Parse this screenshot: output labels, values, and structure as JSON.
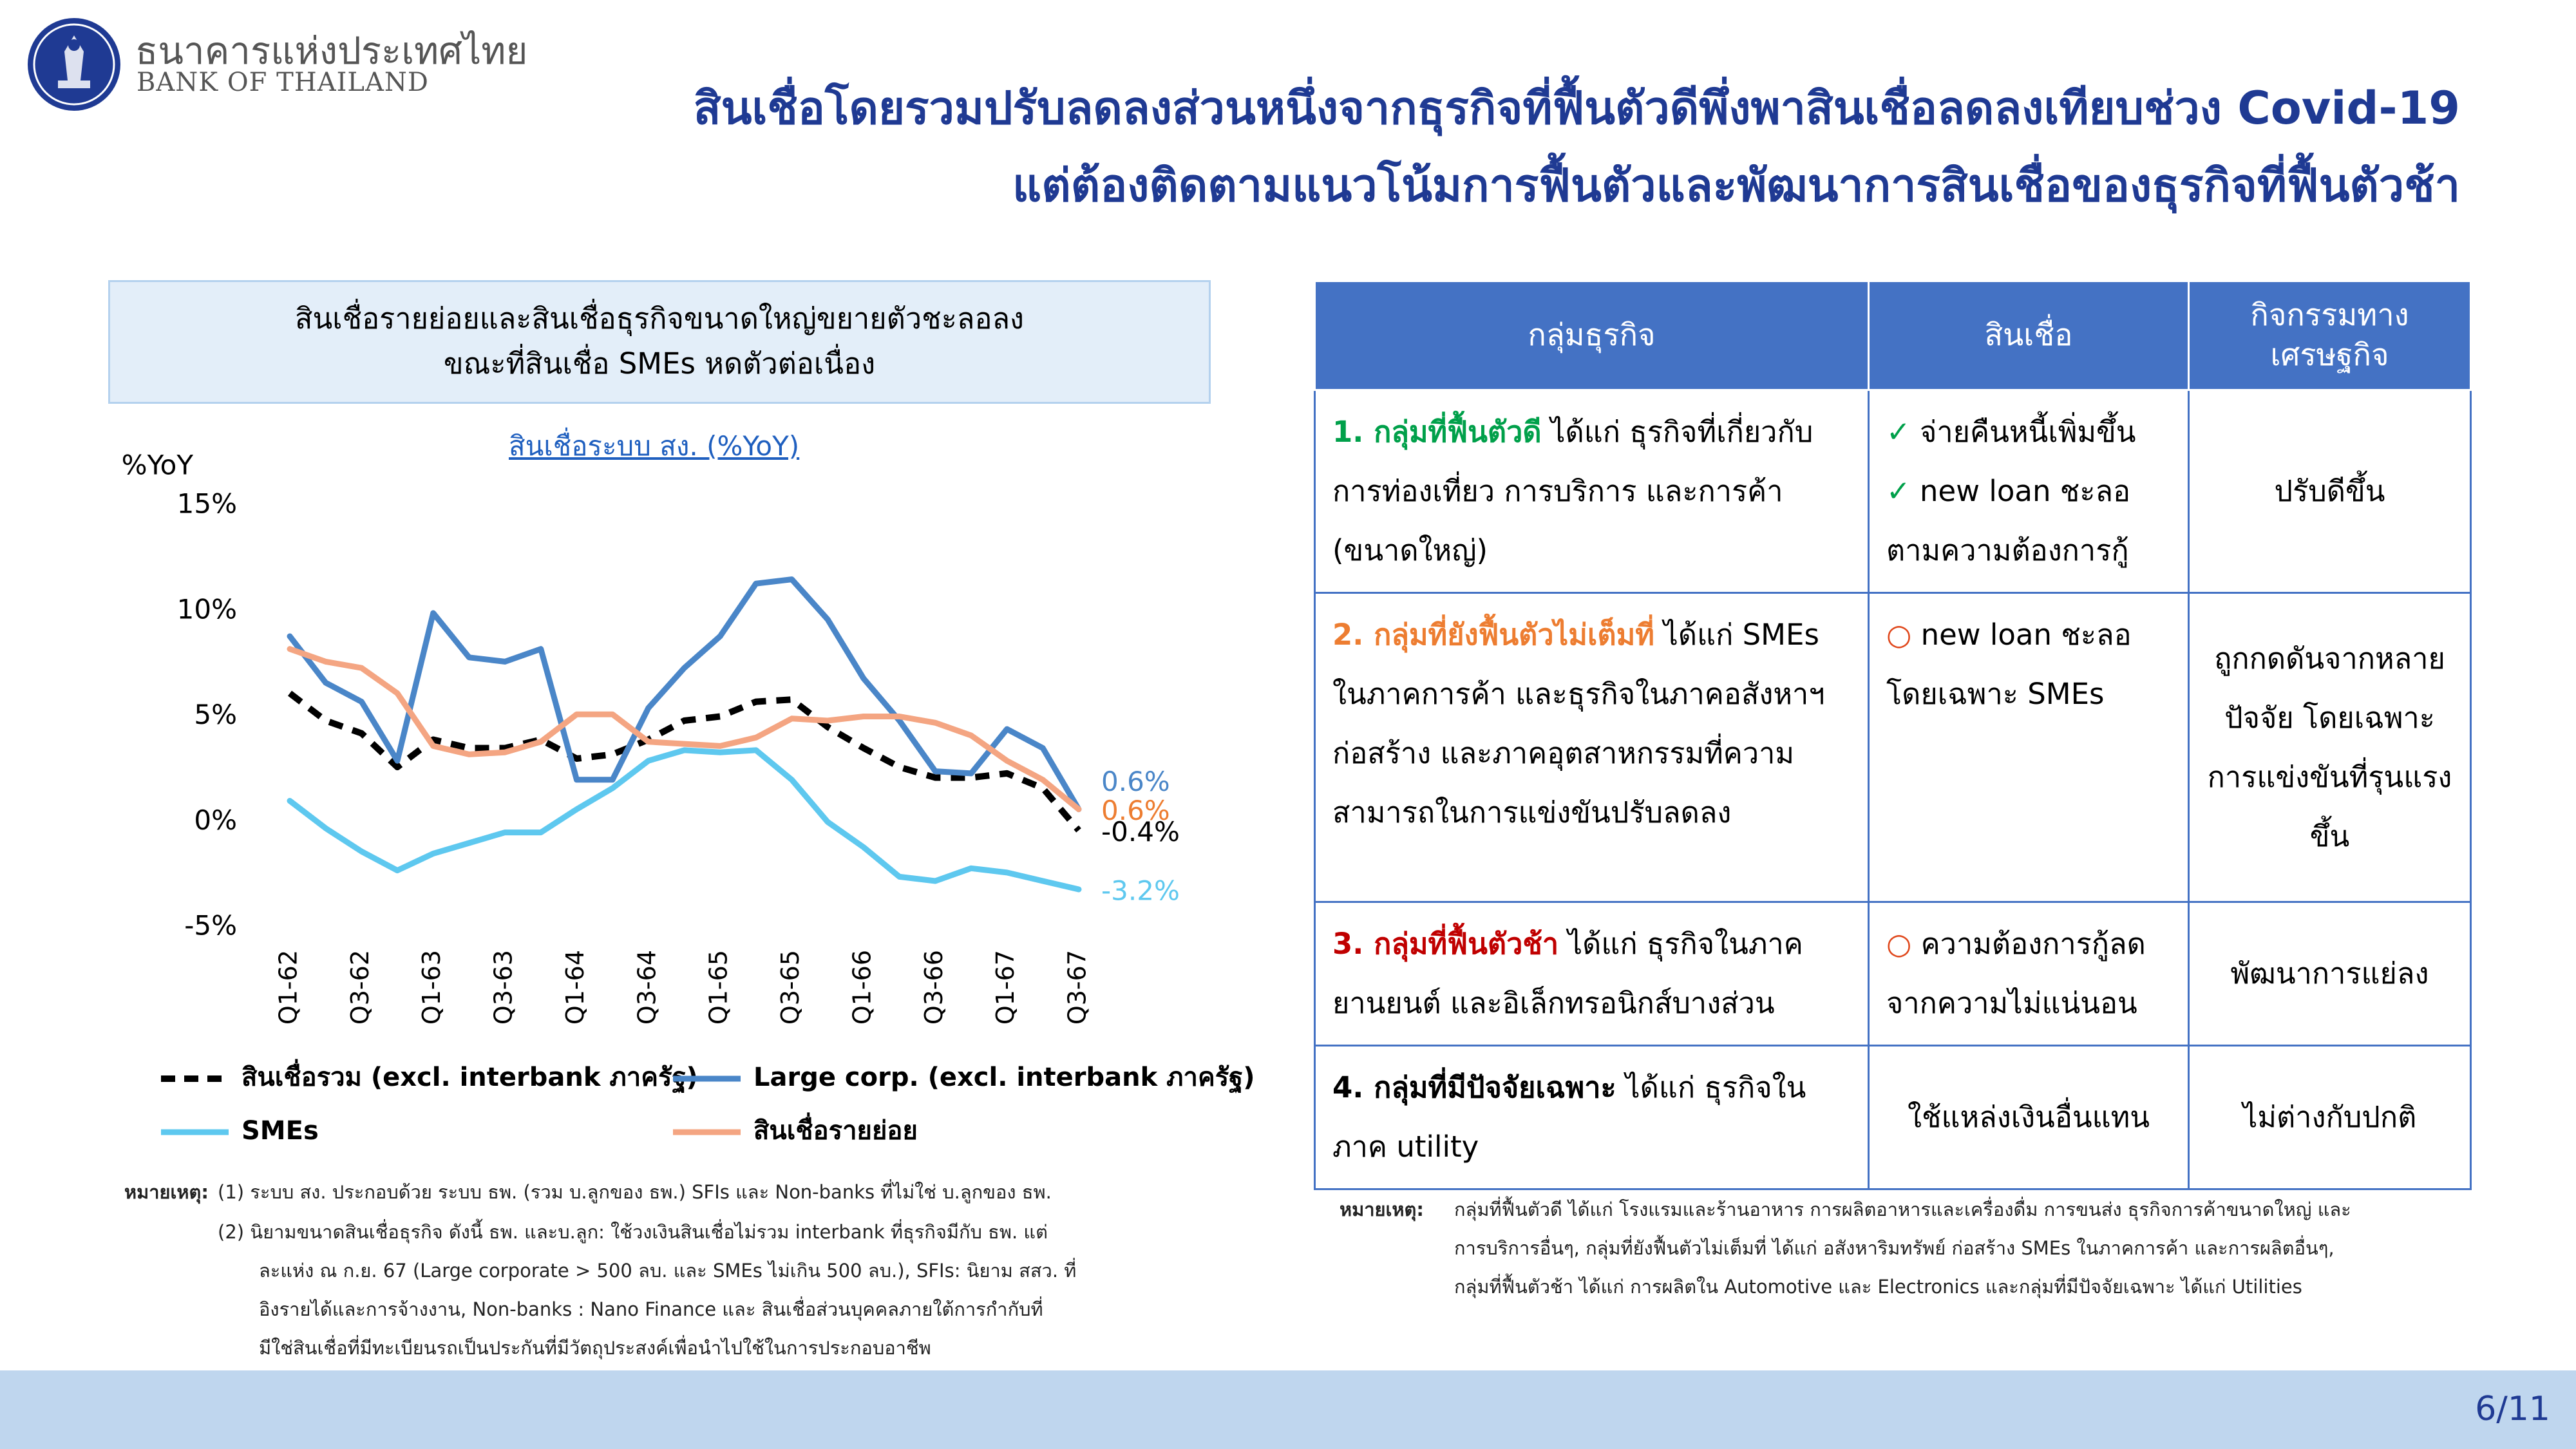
{
  "header": {
    "bank_name_th": "ธนาคารแห่งประเทศไทย",
    "bank_name_en": "BANK OF THAILAND",
    "title_line1": "สินเชื่อโดยรวมปรับลดลงส่วนหนึ่งจากธุรกิจที่ฟื้นตัวดีพึ่งพาสินเชื่อลดลงเทียบช่วง Covid-19",
    "title_line2": "แต่ต้องติดตามแนวโน้มการฟื้นตัวและพัฒนาการสินเชื่อของธุรกิจที่ฟื้นตัวช้า"
  },
  "chart_heading": {
    "line1": "สินเชื่อรายย่อยและสินเชื่อธุรกิจขนาดใหญ่ขยายตัวชะลอลง",
    "line2": "ขณะที่สินเชื่อ SMEs หดตัวต่อเนื่อง"
  },
  "chart_data": {
    "type": "line",
    "title": "สินเชื่อระบบ สง. (%YoY)",
    "ylabel": "%YoY",
    "ylim": [
      -5,
      15
    ],
    "yticks": [
      15,
      10,
      5,
      0,
      -5
    ],
    "ytick_labels": [
      "15%",
      "10%",
      "5%",
      "0%",
      "-5%"
    ],
    "x": [
      "Q1-62",
      "Q2-62",
      "Q3-62",
      "Q4-62",
      "Q1-63",
      "Q2-63",
      "Q3-63",
      "Q4-63",
      "Q1-64",
      "Q2-64",
      "Q3-64",
      "Q4-64",
      "Q1-65",
      "Q2-65",
      "Q3-65",
      "Q4-65",
      "Q1-66",
      "Q2-66",
      "Q3-66",
      "Q4-66",
      "Q1-67",
      "Q2-67",
      "Q3-67"
    ],
    "xtick_labels": [
      "Q1-62",
      "",
      "Q3-62",
      "",
      "Q1-63",
      "",
      "Q3-63",
      "",
      "Q1-64",
      "",
      "Q3-64",
      "",
      "Q1-65",
      "",
      "Q3-65",
      "",
      "Q1-66",
      "",
      "Q3-66",
      "",
      "Q1-67",
      "",
      "Q3-67"
    ],
    "legend_position": "bottom",
    "grid": false,
    "series": [
      {
        "name": "สินเชื่อรวม (excl. interbank ภาครัฐ)",
        "color": "#000000",
        "dashed": true,
        "values": [
          6.1,
          4.8,
          4.2,
          2.6,
          3.9,
          3.5,
          3.5,
          3.9,
          3.0,
          3.2,
          3.9,
          4.8,
          5.0,
          5.7,
          5.8,
          4.5,
          3.5,
          2.6,
          2.1,
          2.1,
          2.3,
          1.6,
          -0.4
        ],
        "end_label": "-0.4%",
        "end_label_color": "#000000"
      },
      {
        "name": "Large corp. (excl. interbank ภาครัฐ)",
        "color": "#4a86c8",
        "dashed": false,
        "values": [
          8.8,
          6.6,
          5.7,
          2.9,
          9.9,
          7.8,
          7.6,
          8.2,
          2.0,
          2.0,
          5.4,
          7.3,
          8.8,
          11.3,
          11.5,
          9.6,
          6.8,
          4.8,
          2.4,
          2.3,
          4.4,
          3.5,
          0.6
        ],
        "end_label": "0.6%",
        "end_label_color": "#4a86c8"
      },
      {
        "name": "SMEs",
        "color": "#5ec8ef",
        "dashed": false,
        "values": [
          1.0,
          -0.3,
          -1.4,
          -2.3,
          -1.5,
          -1.0,
          -0.5,
          -0.5,
          0.6,
          1.6,
          2.9,
          3.4,
          3.3,
          3.4,
          2.0,
          0.0,
          -1.2,
          -2.6,
          -2.8,
          -2.2,
          -2.4,
          -2.8,
          -3.2
        ],
        "end_label": "-3.2%",
        "end_label_color": "#5ec8ef"
      },
      {
        "name": "สินเชื่อรายย่อย",
        "color": "#f4a582",
        "dashed": false,
        "values": [
          8.2,
          7.6,
          7.3,
          6.1,
          3.6,
          3.2,
          3.3,
          3.8,
          5.1,
          5.1,
          3.8,
          3.7,
          3.6,
          4.0,
          4.9,
          4.8,
          5.0,
          5.0,
          4.7,
          4.1,
          2.9,
          2.0,
          0.6
        ],
        "end_label": "0.6%",
        "end_label_color": "#ed7d31"
      }
    ]
  },
  "chart_notes": {
    "label": "หมายเหตุ:",
    "item1": "(1)  ระบบ สง. ประกอบด้วย ระบบ ธพ. (รวม บ.ลูกของ ธพ.) SFIs และ Non-banks ที่ไม่ใช่ บ.ลูกของ ธพ.",
    "item2_line1": "(2)  นิยามขนาดสินเชื่อธุรกิจ ดังนี้ ธพ. และบ.ลูก: ใช้วงเงินสินเชื่อไม่รวม interbank ที่ธุรกิจมีกับ ธพ. แต่",
    "item2_line2": "ละแห่ง ณ ก.ย. 67 (Large corporate > 500 ลบ. และ SMEs ไม่เกิน 500 ลบ.), SFIs: นิยาม สสว. ที่",
    "item2_line3": "อิงรายได้และการจ้างงาน, Non-banks : Nano Finance และ สินเชื่อส่วนบุคคลภายใต้การกำกับที่",
    "item2_line4": "มีใช่สินเชื่อที่มีทะเบียนรถเป็นประกันที่มีวัตถุประสงค์เพื่อนำไปใช้ในการประกอบอาชีพ"
  },
  "table": {
    "headers": {
      "group": "กลุ่มธุรกิจ",
      "credit": "สินเชื่อ",
      "activity_line1": "กิจกรรมทาง",
      "activity_line2": "เศรษฐกิจ"
    },
    "rows": [
      {
        "group_title": "1. กลุ่มที่ฟื้นตัวดี",
        "group_desc": " ได้แก่ ธุรกิจที่เกี่ยวกับการท่องเที่ยว การบริการ และการค้า (ขนาดใหญ่)",
        "credit_mark1": "✓",
        "credit_line1": " จ่ายคืนหนี้เพิ่มขึ้น",
        "credit_mark2": "✓",
        "credit_line2": " new loan ชะลอตามความต้องการกู้",
        "activity": "ปรับดีขึ้น"
      },
      {
        "group_title": "2. กลุ่มที่ยังฟื้นตัวไม่เต็มที่",
        "group_desc": " ได้แก่ SMEs ในภาคการค้า และธุรกิจในภาคอสังหาฯ ก่อสร้าง และภาคอุตสาหกรรมที่ความสามารถในการแข่งขันปรับลดลง",
        "credit_mark1": "○",
        "credit_line1": " new loan ชะลอโดยเฉพาะ SMEs",
        "activity": "ถูกกดดันจากหลายปัจจัย โดยเฉพาะการแข่งขันที่รุนแรงขึ้น"
      },
      {
        "group_title": "3. กลุ่มที่ฟื้นตัวช้า",
        "group_desc": " ได้แก่ ธุรกิจในภาคยานยนต์ และอิเล็กทรอนิกส์บางส่วน",
        "credit_mark1": "○",
        "credit_line1": " ความต้องการกู้ลดจากความไม่แน่นอน",
        "activity": "พัฒนาการแย่ลง"
      },
      {
        "group_title": "4. กลุ่มที่มีปัจจัยเฉพาะ",
        "group_desc": " ได้แก่ ธุรกิจในภาค utility",
        "credit_line1": "ใช้แหล่งเงินอื่นแทน",
        "activity": "ไม่ต่างกับปกติ"
      }
    ]
  },
  "table_notes": {
    "label": "หมายเหตุ:",
    "line1": "กลุ่มที่ฟื้นตัวดี ได้แก่ โรงแรมและร้านอาหาร การผลิตอาหารและเครื่องดื่ม การขนส่ง ธุรกิจการค้าขนาดใหญ่ และ",
    "line2": "การบริการอื่นๆ, กลุ่มที่ยังฟื้นตัวไม่เต็มที่ ได้แก่ อสังหาริมทรัพย์ ก่อสร้าง SMEs ในภาคการค้า และการผลิตอื่นๆ,",
    "line3": "กลุ่มที่ฟื้นตัวช้า ได้แก่ การผลิตใน Automotive และ Electronics และกลุ่มที่มีปัจจัยเฉพาะ ได้แก่ Utilities"
  },
  "footer": {
    "page_number": "6/11"
  },
  "colors": {
    "title": "#1f3a93",
    "table_header": "#4472c4",
    "footer": "#bfd6ee",
    "heading_box": "#e3eef9"
  }
}
